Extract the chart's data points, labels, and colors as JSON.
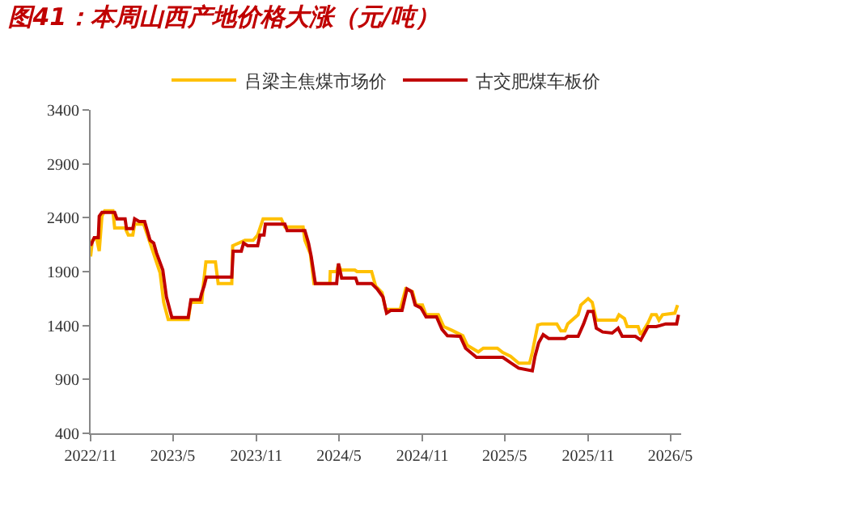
{
  "chart_data": {
    "type": "line",
    "title": "图41：本周山西产地价格大涨（元/吨）",
    "xlim": [
      "2022-11-01",
      "2026-05-25"
    ],
    "xticks": [
      {
        "value": "2022-11-01",
        "label": "2022/11"
      },
      {
        "value": "2023-05-01",
        "label": "2023/5"
      },
      {
        "value": "2023-11-01",
        "label": "2023/11"
      },
      {
        "value": "2024-05-01",
        "label": "2024/5"
      },
      {
        "value": "2024-11-01",
        "label": "2024/11"
      },
      {
        "value": "2025-05-01",
        "label": "2025/5"
      },
      {
        "value": "2025-11-01",
        "label": "2025/11"
      },
      {
        "value": "2026-05-01",
        "label": "2026/5"
      }
    ],
    "ylim": [
      400,
      3400
    ],
    "yticks": [
      400,
      900,
      1400,
      1900,
      2400,
      2900,
      3400
    ],
    "grid": false,
    "legend": "top",
    "marker": "none",
    "line_style": "solid",
    "series": [
      {
        "name": "吕梁主焦煤市场价",
        "color": "#ffc000",
        "x": [
          "2022-11-01",
          "2022-11-05",
          "2022-11-14",
          "2022-11-20",
          "2022-11-26",
          "2022-12-02",
          "2022-12-20",
          "2022-12-24",
          "2023-01-16",
          "2023-01-23",
          "2023-02-02",
          "2023-02-06",
          "2023-02-26",
          "2023-03-06",
          "2023-03-18",
          "2023-03-26",
          "2023-04-03",
          "2023-04-11",
          "2023-04-21",
          "2023-06-04",
          "2023-06-10",
          "2023-07-04",
          "2023-07-07",
          "2023-07-13",
          "2023-08-03",
          "2023-08-09",
          "2023-09-08",
          "2023-09-10",
          "2023-10-07",
          "2023-10-25",
          "2023-11-04",
          "2023-11-16",
          "2023-12-26",
          "2024-01-03",
          "2024-02-12",
          "2024-02-16",
          "2024-02-28",
          "2024-03-07",
          "2024-04-11",
          "2024-04-12",
          "2024-04-26",
          "2024-04-30",
          "2024-05-05",
          "2024-06-05",
          "2024-06-10",
          "2024-07-12",
          "2024-07-21",
          "2024-08-04",
          "2024-08-12",
          "2024-09-13",
          "2024-09-25",
          "2024-10-10",
          "2024-10-18",
          "2024-11-01",
          "2024-11-09",
          "2024-12-06",
          "2024-12-18",
          "2025-01-05",
          "2025-01-29",
          "2025-02-08",
          "2025-03-04",
          "2025-03-15",
          "2025-04-15",
          "2025-04-27",
          "2025-05-14",
          "2025-06-01",
          "2025-06-25",
          "2025-07-01",
          "2025-07-13",
          "2025-07-22",
          "2025-08-24",
          "2025-09-02",
          "2025-09-11",
          "2025-09-17",
          "2025-10-10",
          "2025-10-16",
          "2025-11-01",
          "2025-11-10",
          "2025-11-19",
          "2026-01-02",
          "2026-01-08",
          "2026-01-20",
          "2026-01-26",
          "2026-02-19",
          "2026-02-25",
          "2026-03-13",
          "2026-03-21",
          "2026-03-31",
          "2026-04-06",
          "2026-04-14",
          "2026-05-11",
          "2026-05-17"
        ],
        "values": [
          2040,
          2190,
          2215,
          2090,
          2415,
          2465,
          2465,
          2305,
          2305,
          2240,
          2240,
          2340,
          2340,
          2240,
          2090,
          1990,
          1890,
          1615,
          1455,
          1455,
          1615,
          1615,
          1765,
          1990,
          1990,
          1790,
          1790,
          2140,
          2190,
          2190,
          2240,
          2390,
          2390,
          2315,
          2315,
          2190,
          2065,
          1790,
          1790,
          1900,
          1900,
          1965,
          1915,
          1915,
          1900,
          1900,
          1765,
          1705,
          1550,
          1550,
          1740,
          1715,
          1590,
          1590,
          1500,
          1500,
          1390,
          1355,
          1305,
          1215,
          1155,
          1190,
          1190,
          1150,
          1115,
          1050,
          1050,
          1150,
          1405,
          1415,
          1415,
          1350,
          1350,
          1415,
          1500,
          1590,
          1650,
          1615,
          1450,
          1450,
          1500,
          1465,
          1390,
          1390,
          1315,
          1425,
          1500,
          1500,
          1450,
          1500,
          1515,
          1590
        ]
      },
      {
        "name": "古交肥煤车板价",
        "color": "#c00000",
        "x": [
          "2022-11-01",
          "2022-11-09",
          "2022-11-18",
          "2022-11-20",
          "2022-11-26",
          "2022-12-24",
          "2022-12-29",
          "2023-01-16",
          "2023-01-19",
          "2023-02-02",
          "2023-02-06",
          "2023-02-16",
          "2023-02-28",
          "2023-03-12",
          "2023-03-20",
          "2023-03-26",
          "2023-04-09",
          "2023-04-17",
          "2023-04-29",
          "2023-06-04",
          "2023-06-10",
          "2023-06-30",
          "2023-07-04",
          "2023-07-09",
          "2023-07-14",
          "2023-09-08",
          "2023-09-11",
          "2023-09-29",
          "2023-10-04",
          "2023-10-13",
          "2023-11-04",
          "2023-11-09",
          "2023-11-18",
          "2023-11-21",
          "2024-01-03",
          "2024-01-08",
          "2024-02-16",
          "2024-02-24",
          "2024-03-01",
          "2024-03-10",
          "2024-04-26",
          "2024-04-30",
          "2024-05-07",
          "2024-06-07",
          "2024-06-11",
          "2024-07-12",
          "2024-07-24",
          "2024-08-06",
          "2024-08-14",
          "2024-08-23",
          "2024-09-17",
          "2024-09-28",
          "2024-10-08",
          "2024-10-16",
          "2024-10-28",
          "2024-11-01",
          "2024-11-09",
          "2024-12-02",
          "2024-12-14",
          "2024-12-26",
          "2025-01-23",
          "2025-02-04",
          "2025-02-28",
          "2025-04-27",
          "2025-05-14",
          "2025-06-01",
          "2025-07-01",
          "2025-07-07",
          "2025-07-15",
          "2025-07-25",
          "2025-08-06",
          "2025-09-11",
          "2025-09-17",
          "2025-10-10",
          "2025-10-22",
          "2025-11-01",
          "2025-11-12",
          "2025-11-19",
          "2025-12-03",
          "2025-12-24",
          "2026-01-06",
          "2026-01-15",
          "2026-02-13",
          "2026-02-25",
          "2026-03-13",
          "2026-03-31",
          "2026-04-09",
          "2026-04-21",
          "2026-05-15",
          "2026-05-19"
        ],
        "values": [
          2140,
          2215,
          2215,
          2415,
          2450,
          2450,
          2390,
          2390,
          2300,
          2300,
          2390,
          2365,
          2365,
          2190,
          2165,
          2075,
          1915,
          1665,
          1475,
          1475,
          1640,
          1640,
          1705,
          1765,
          1850,
          1850,
          2090,
          2090,
          2165,
          2140,
          2140,
          2240,
          2240,
          2340,
          2340,
          2280,
          2280,
          2165,
          2040,
          1790,
          1790,
          1975,
          1840,
          1840,
          1790,
          1790,
          1740,
          1665,
          1515,
          1540,
          1540,
          1740,
          1715,
          1590,
          1565,
          1540,
          1480,
          1480,
          1365,
          1305,
          1300,
          1190,
          1105,
          1105,
          1055,
          1005,
          980,
          1115,
          1240,
          1315,
          1280,
          1280,
          1300,
          1300,
          1415,
          1530,
          1530,
          1375,
          1340,
          1330,
          1375,
          1300,
          1300,
          1265,
          1390,
          1390,
          1400,
          1415,
          1415,
          1500
        ]
      }
    ]
  }
}
